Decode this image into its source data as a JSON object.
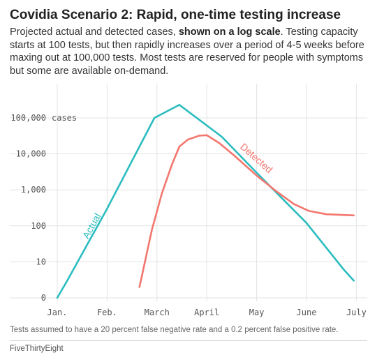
{
  "header": {
    "title": "Covidia Scenario 2: Rapid, one-time testing increase",
    "subtitle_pre": "Projected actual and detected cases, ",
    "subtitle_bold": "shown on a log scale",
    "subtitle_post": ". Testing capacity starts at 100 tests, but then rapidly increases over a period of 4-5 weeks before maxing out at 100,000 tests. Most tests are reserved for people with symptoms but some are available on-demand."
  },
  "footer": {
    "note": "Tests assumed to have a 20 percent false negative rate and a 0.2 percent false positive rate.",
    "credit": "FiveThirtyEight"
  },
  "chart_data": {
    "type": "line",
    "x_axis": {
      "ticks": [
        "Jan.",
        "Feb.",
        "March",
        "April",
        "May",
        "June",
        "July"
      ],
      "tick_month_index": [
        0,
        1,
        2,
        3,
        4,
        5,
        6
      ]
    },
    "y_axis": {
      "scale": "log",
      "ticks": [
        {
          "value": 1,
          "label": "0"
        },
        {
          "value": 10,
          "label": "10"
        },
        {
          "value": 100,
          "label": "100"
        },
        {
          "value": 1000,
          "label": "1,000"
        },
        {
          "value": 10000,
          "label": "10,000"
        },
        {
          "value": 100000,
          "label": "100,000",
          "suffix": "cases"
        }
      ],
      "ylim": [
        1,
        250000
      ],
      "grid": true
    },
    "series": [
      {
        "name": "Actual",
        "color": "#2bbcbf",
        "points": [
          {
            "month": 0.0,
            "value": 1
          },
          {
            "month": 0.2,
            "value": 3
          },
          {
            "month": 1.0,
            "value": 300
          },
          {
            "month": 1.95,
            "value": 100000
          },
          {
            "month": 2.45,
            "value": 230000
          },
          {
            "month": 3.3,
            "value": 30000
          },
          {
            "month": 4.0,
            "value": 3000
          },
          {
            "month": 5.0,
            "value": 120
          },
          {
            "month": 5.75,
            "value": 6
          },
          {
            "month": 5.95,
            "value": 3
          }
        ]
      },
      {
        "name": "Detected",
        "color": "#f2776f",
        "points": [
          {
            "month": 1.65,
            "value": 2
          },
          {
            "month": 1.9,
            "value": 80
          },
          {
            "month": 2.1,
            "value": 800
          },
          {
            "month": 2.3,
            "value": 5000
          },
          {
            "month": 2.45,
            "value": 16000
          },
          {
            "month": 2.62,
            "value": 25000
          },
          {
            "month": 2.85,
            "value": 32000
          },
          {
            "month": 3.0,
            "value": 33000
          },
          {
            "month": 3.25,
            "value": 20000
          },
          {
            "month": 3.55,
            "value": 9000
          },
          {
            "month": 4.0,
            "value": 2500
          },
          {
            "month": 4.4,
            "value": 900
          },
          {
            "month": 4.75,
            "value": 400
          },
          {
            "month": 5.05,
            "value": 260
          },
          {
            "month": 5.4,
            "value": 210
          },
          {
            "month": 5.95,
            "value": 195
          }
        ]
      }
    ]
  }
}
